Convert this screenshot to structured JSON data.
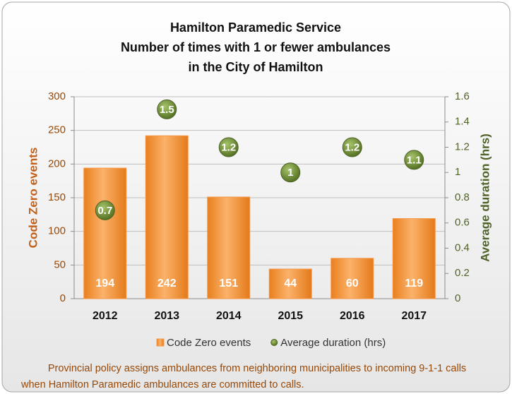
{
  "chart_data": {
    "type": "combo",
    "title": [
      "Hamilton Paramedic Service",
      "Number of times with 1 or fewer ambulances",
      "in the City of Hamilton"
    ],
    "categories": [
      "2012",
      "2013",
      "2014",
      "2015",
      "2016",
      "2017"
    ],
    "series": [
      {
        "name": "Code Zero events",
        "type": "bar",
        "color": "#f79646",
        "values": [
          194,
          242,
          151,
          44,
          60,
          119
        ]
      },
      {
        "name": "Average duration (hrs)",
        "type": "scatter",
        "axis": "y2",
        "color": "#77933c",
        "values": [
          0.7,
          1.5,
          1.2,
          1,
          1.2,
          1.1
        ]
      }
    ],
    "ylabel": "Code Zero events",
    "y2label": "Average duration (hrs)",
    "ylim": [
      0,
      300
    ],
    "yticks": [
      0,
      50,
      100,
      150,
      200,
      250,
      300
    ],
    "y2lim": [
      0,
      1.6
    ],
    "y2ticks": [
      0,
      0.2,
      0.4,
      0.6,
      0.8,
      1,
      1.2,
      1.4,
      1.6
    ],
    "grid": true,
    "legend": "bottom",
    "annotation": [
      "Provincial policy assigns ambulances from neighboring municipalities to incoming 9-1-1 calls",
      "when Hamilton Paramedic ambulances are committed to calls."
    ]
  }
}
